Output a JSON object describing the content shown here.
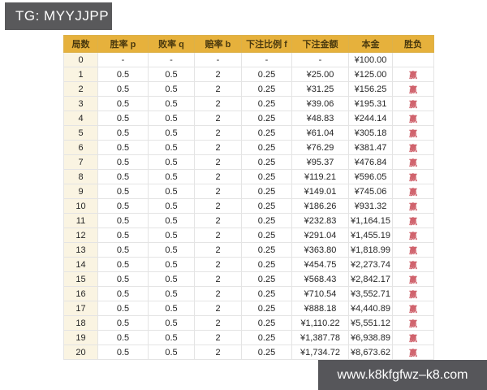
{
  "banner": {
    "text": "TG: MYYJJPP"
  },
  "watermark": {
    "text": "www.k8kfgfwz–k8.com"
  },
  "colors": {
    "header_bg": "#e6b13c",
    "header_text": "#4a390e",
    "row_header_bg": "#faf4e2",
    "win_text": "#d0636d",
    "banner_bg": "#59595b",
    "watermark_bg": "#56565a"
  },
  "chart_data": {
    "type": "table",
    "columns": [
      "局数",
      "胜率 p",
      "败率 q",
      "赔率 b",
      "下注比例 f",
      "下注金额",
      "本金",
      "胜负"
    ],
    "rows": [
      [
        "0",
        "-",
        "-",
        "-",
        "-",
        "-",
        "¥100.00",
        ""
      ],
      [
        "1",
        "0.5",
        "0.5",
        "2",
        "0.25",
        "¥25.00",
        "¥125.00",
        "赢"
      ],
      [
        "2",
        "0.5",
        "0.5",
        "2",
        "0.25",
        "¥31.25",
        "¥156.25",
        "赢"
      ],
      [
        "3",
        "0.5",
        "0.5",
        "2",
        "0.25",
        "¥39.06",
        "¥195.31",
        "赢"
      ],
      [
        "4",
        "0.5",
        "0.5",
        "2",
        "0.25",
        "¥48.83",
        "¥244.14",
        "赢"
      ],
      [
        "5",
        "0.5",
        "0.5",
        "2",
        "0.25",
        "¥61.04",
        "¥305.18",
        "赢"
      ],
      [
        "6",
        "0.5",
        "0.5",
        "2",
        "0.25",
        "¥76.29",
        "¥381.47",
        "赢"
      ],
      [
        "7",
        "0.5",
        "0.5",
        "2",
        "0.25",
        "¥95.37",
        "¥476.84",
        "赢"
      ],
      [
        "8",
        "0.5",
        "0.5",
        "2",
        "0.25",
        "¥119.21",
        "¥596.05",
        "赢"
      ],
      [
        "9",
        "0.5",
        "0.5",
        "2",
        "0.25",
        "¥149.01",
        "¥745.06",
        "赢"
      ],
      [
        "10",
        "0.5",
        "0.5",
        "2",
        "0.25",
        "¥186.26",
        "¥931.32",
        "赢"
      ],
      [
        "11",
        "0.5",
        "0.5",
        "2",
        "0.25",
        "¥232.83",
        "¥1,164.15",
        "赢"
      ],
      [
        "12",
        "0.5",
        "0.5",
        "2",
        "0.25",
        "¥291.04",
        "¥1,455.19",
        "赢"
      ],
      [
        "13",
        "0.5",
        "0.5",
        "2",
        "0.25",
        "¥363.80",
        "¥1,818.99",
        "赢"
      ],
      [
        "14",
        "0.5",
        "0.5",
        "2",
        "0.25",
        "¥454.75",
        "¥2,273.74",
        "赢"
      ],
      [
        "15",
        "0.5",
        "0.5",
        "2",
        "0.25",
        "¥568.43",
        "¥2,842.17",
        "赢"
      ],
      [
        "16",
        "0.5",
        "0.5",
        "2",
        "0.25",
        "¥710.54",
        "¥3,552.71",
        "赢"
      ],
      [
        "17",
        "0.5",
        "0.5",
        "2",
        "0.25",
        "¥888.18",
        "¥4,440.89",
        "赢"
      ],
      [
        "18",
        "0.5",
        "0.5",
        "2",
        "0.25",
        "¥1,110.22",
        "¥5,551.12",
        "赢"
      ],
      [
        "19",
        "0.5",
        "0.5",
        "2",
        "0.25",
        "¥1,387.78",
        "¥6,938.89",
        "赢"
      ],
      [
        "20",
        "0.5",
        "0.5",
        "2",
        "0.25",
        "¥1,734.72",
        "¥8,673.62",
        "赢"
      ]
    ]
  }
}
